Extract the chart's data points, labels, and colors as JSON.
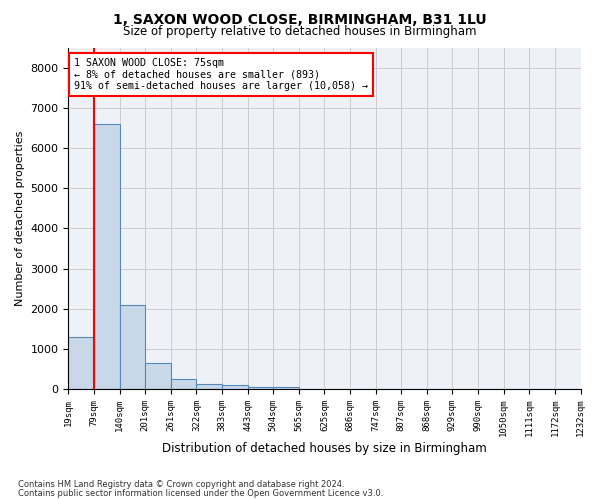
{
  "title1": "1, SAXON WOOD CLOSE, BIRMINGHAM, B31 1LU",
  "title2": "Size of property relative to detached houses in Birmingham",
  "xlabel": "Distribution of detached houses by size in Birmingham",
  "ylabel": "Number of detached properties",
  "footer1": "Contains HM Land Registry data © Crown copyright and database right 2024.",
  "footer2": "Contains public sector information licensed under the Open Government Licence v3.0.",
  "bin_labels": [
    "19sqm",
    "79sqm",
    "140sqm",
    "201sqm",
    "261sqm",
    "322sqm",
    "383sqm",
    "443sqm",
    "504sqm",
    "565sqm",
    "625sqm",
    "686sqm",
    "747sqm",
    "807sqm",
    "868sqm",
    "929sqm",
    "990sqm",
    "1050sqm",
    "1111sqm",
    "1172sqm",
    "1232sqm"
  ],
  "bar_values": [
    1300,
    6600,
    2100,
    650,
    250,
    130,
    100,
    60,
    60,
    0,
    0,
    0,
    0,
    0,
    0,
    0,
    0,
    0,
    0,
    0
  ],
  "bar_color": "#c8d8e8",
  "bar_edge_color": "#5588bb",
  "grid_color": "#cccccc",
  "bg_color": "#eef2f8",
  "red_line_x": 1,
  "annotation_text": "1 SAXON WOOD CLOSE: 75sqm\n← 8% of detached houses are smaller (893)\n91% of semi-detached houses are larger (10,058) →",
  "ylim": [
    0,
    8500
  ],
  "yticks": [
    0,
    1000,
    2000,
    3000,
    4000,
    5000,
    6000,
    7000,
    8000
  ]
}
